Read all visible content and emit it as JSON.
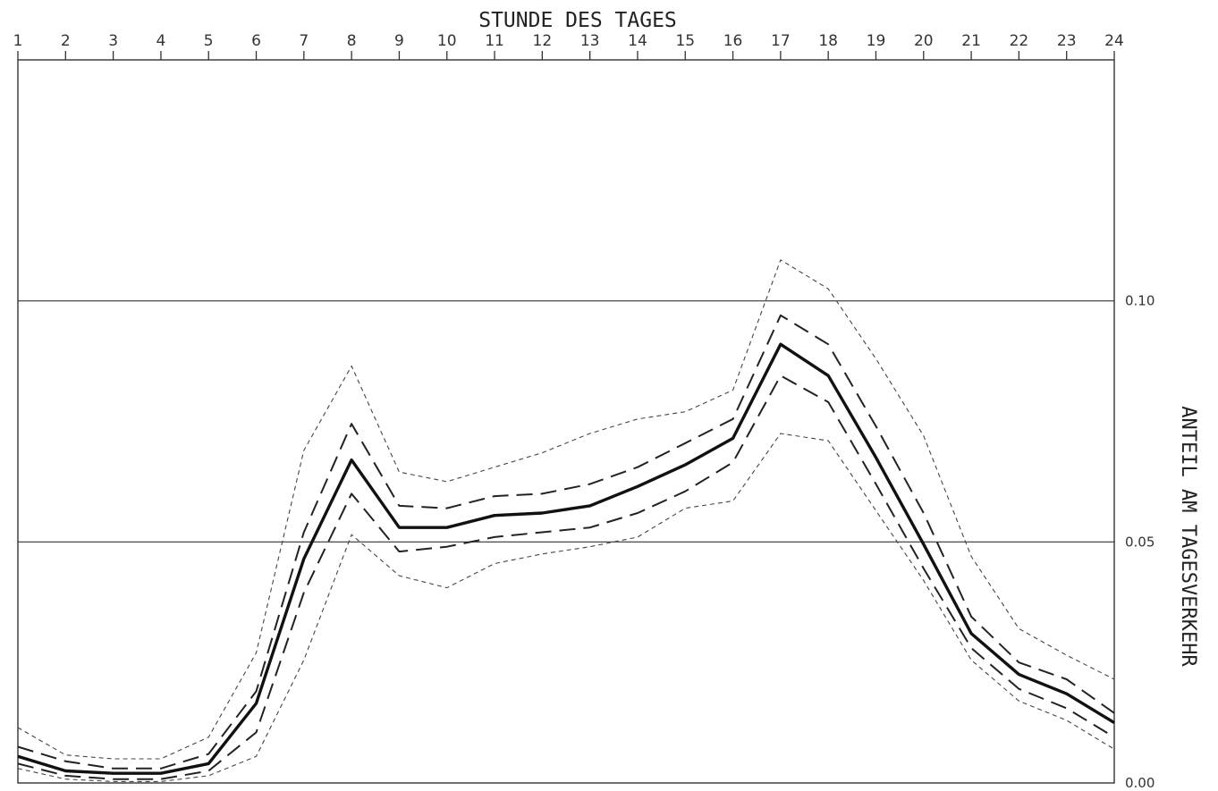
{
  "chart_data": {
    "type": "line",
    "title": "STUNDE DES TAGES",
    "ylabel": "ANTEIL AM TAGESVERKEHR",
    "x": [
      1,
      2,
      3,
      4,
      5,
      6,
      7,
      8,
      9,
      10,
      11,
      12,
      13,
      14,
      15,
      16,
      17,
      18,
      19,
      20,
      21,
      22,
      23,
      24
    ],
    "xtick_labels": [
      "1",
      "2",
      "3",
      "4",
      "5",
      "6",
      "7",
      "8",
      "9",
      "10",
      "11",
      "12",
      "13",
      "14",
      "15",
      "16",
      "17",
      "18",
      "19",
      "20",
      "21",
      "22",
      "23",
      "24"
    ],
    "ytick_labels": [
      "0.00",
      "0.05",
      "0.10"
    ],
    "yticks": [
      0.0,
      0.05,
      0.1
    ],
    "ylim": [
      0.0,
      0.15
    ],
    "xlim": [
      1,
      24
    ],
    "grid": "horizontal lines at 0.05 and 0.10",
    "series": [
      {
        "style": "dotted-dash",
        "values": [
          0.0115,
          0.0058,
          0.005,
          0.005,
          0.0095,
          0.027,
          0.069,
          0.0865,
          0.0645,
          0.0625,
          0.0655,
          0.0685,
          0.0725,
          0.0755,
          0.077,
          0.0815,
          0.1085,
          0.1025,
          0.088,
          0.072,
          0.047,
          0.032,
          0.0265,
          0.0215
        ]
      },
      {
        "style": "dashed",
        "values": [
          0.0075,
          0.0045,
          0.003,
          0.003,
          0.006,
          0.019,
          0.052,
          0.0745,
          0.0575,
          0.057,
          0.0595,
          0.06,
          0.062,
          0.0655,
          0.0705,
          0.0755,
          0.097,
          0.091,
          0.074,
          0.056,
          0.0345,
          0.025,
          0.0215,
          0.0145
        ]
      },
      {
        "style": "solid",
        "values": [
          0.0055,
          0.0025,
          0.002,
          0.002,
          0.004,
          0.0165,
          0.0465,
          0.067,
          0.053,
          0.053,
          0.0555,
          0.056,
          0.0575,
          0.0615,
          0.066,
          0.0715,
          0.091,
          0.0845,
          0.0675,
          0.0495,
          0.031,
          0.0225,
          0.0185,
          0.0125
        ]
      },
      {
        "style": "dashed",
        "values": [
          0.004,
          0.0015,
          0.0008,
          0.0008,
          0.0025,
          0.0105,
          0.0395,
          0.06,
          0.048,
          0.049,
          0.051,
          0.052,
          0.053,
          0.056,
          0.0605,
          0.0665,
          0.0845,
          0.079,
          0.062,
          0.0445,
          0.028,
          0.0195,
          0.0155,
          0.0095
        ]
      },
      {
        "style": "dotted-dash",
        "values": [
          0.003,
          0.0008,
          0.0003,
          0.0003,
          0.0015,
          0.0055,
          0.0255,
          0.0515,
          0.043,
          0.0405,
          0.0455,
          0.0475,
          0.049,
          0.051,
          0.057,
          0.0585,
          0.0725,
          0.071,
          0.0565,
          0.042,
          0.0255,
          0.017,
          0.013,
          0.007
        ]
      }
    ]
  }
}
